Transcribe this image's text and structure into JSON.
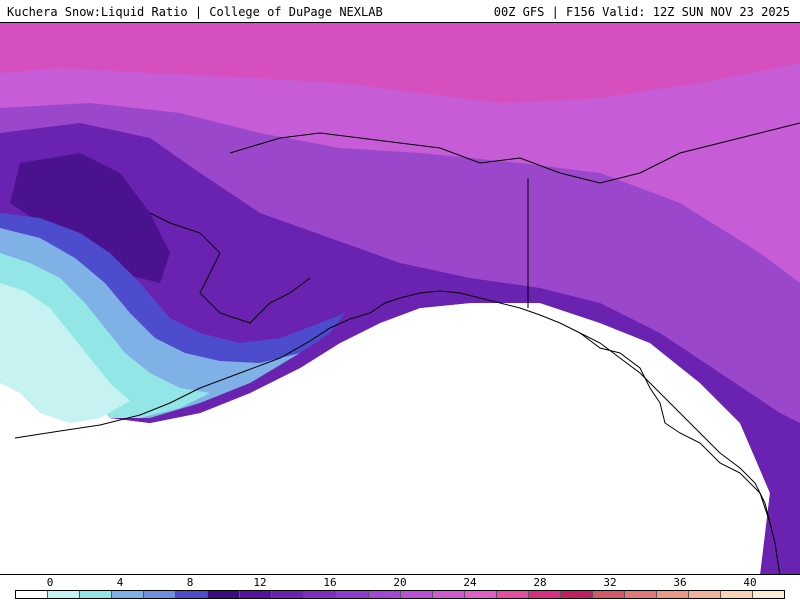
{
  "header": {
    "title_left": "Kuchera Snow:Liquid Ratio | College of DuPage NEXLAB",
    "title_right": "00Z GFS | F156 Valid: 12Z SUN NOV 23 2025"
  },
  "color_scale": {
    "tick_labels": [
      "0",
      "4",
      "8",
      "12",
      "16",
      "20",
      "24",
      "28",
      "32",
      "36",
      "40"
    ],
    "colors": [
      "#ffffff",
      "#c6f2f2",
      "#92e6e6",
      "#7fb0e6",
      "#6e8fe0",
      "#4c4ccc",
      "#3a0a80",
      "#55139c",
      "#6a22b0",
      "#7c2fc0",
      "#8e3ccc",
      "#a447d6",
      "#bb4fd8",
      "#d05ad0",
      "#e060c8",
      "#e34ea0",
      "#d63080",
      "#c02060",
      "#d05a66",
      "#e07a7a",
      "#ea9888",
      "#f0b49a",
      "#f7d2b4",
      "#fcebd2"
    ]
  },
  "map": {
    "colors": {
      "sea": "#ffffff",
      "top_band": "#d64fbf",
      "north": "#c65cd6",
      "mid": "#9b47cc",
      "deep": "#6a22b0",
      "darkest": "#4a128e",
      "blue_edge": "#4c4ccc",
      "light_blue": "#7fb0e6",
      "cyan": "#92e6e6",
      "pale_cyan": "#c6f2f2",
      "coast_line": "#000000"
    }
  }
}
